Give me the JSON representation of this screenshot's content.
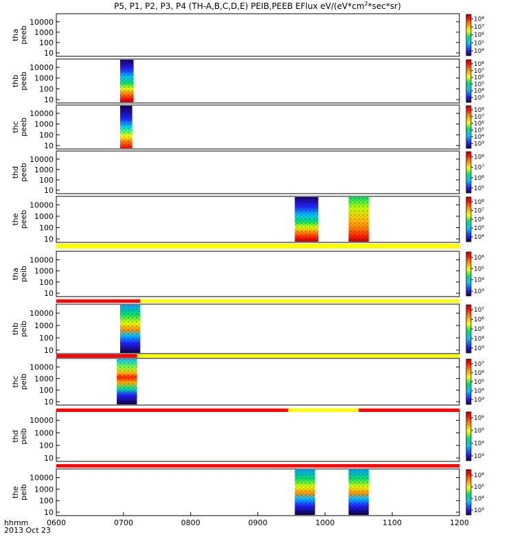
{
  "chart_data": {
    "type": "heatmap",
    "title": "P5, P1, P2, P3, P4 (TH-A,B,C,D,E) PEIB,PEEB EFlux eV/(eV*cm",
    "title_superscript": "2",
    "title_suffix": "*sec*sr)",
    "date_label": "2013 Oct 23",
    "time_axis_label": "hhmm",
    "x_ticks": [
      "0600",
      "0700",
      "0800",
      "0900",
      "1000",
      "1100",
      "1200"
    ],
    "x_range_hours": [
      6,
      12
    ],
    "y_ticks": [
      "10",
      "100",
      "1000",
      "10000"
    ],
    "y_scale": "log",
    "panels": [
      {
        "probe": "tha",
        "product": "peeb",
        "cbar_labels": [
          "10⁴",
          "10⁵",
          "10⁶",
          "10⁷",
          "10⁸"
        ],
        "blocks": []
      },
      {
        "probe": "thb",
        "product": "peeb",
        "cbar_labels": [
          "10³",
          "10⁴",
          "10⁵",
          "10⁶",
          "10⁷",
          "10⁸"
        ],
        "blocks": [
          {
            "start": 6.95,
            "end": 7.15,
            "kind": "electron"
          }
        ]
      },
      {
        "probe": "thc",
        "product": "peeb",
        "cbar_labels": [
          "10³",
          "10⁴",
          "10⁵",
          "10⁶",
          "10⁷",
          "10⁸"
        ],
        "blocks": [
          {
            "start": 6.95,
            "end": 7.13,
            "kind": "electron-high"
          }
        ]
      },
      {
        "probe": "thd",
        "product": "peeb",
        "cbar_labels": [
          "10⁵",
          "10⁶",
          "10⁷",
          "10⁸"
        ],
        "blocks": []
      },
      {
        "probe": "the",
        "product": "peeb",
        "cbar_labels": [
          "10⁴",
          "10⁵",
          "10⁶",
          "10⁷",
          "10⁸"
        ],
        "blocks": [
          {
            "start": 9.55,
            "end": 9.9,
            "kind": "electron"
          },
          {
            "start": 10.35,
            "end": 10.65,
            "kind": "electron-low"
          }
        ]
      },
      {
        "probe": "tha",
        "product": "peib",
        "cbar_labels": [
          "10³",
          "10⁴",
          "10⁵",
          "10⁶"
        ],
        "blocks": []
      },
      {
        "probe": "thb",
        "product": "peib",
        "cbar_labels": [
          "10³",
          "10⁴",
          "10⁵",
          "10⁶",
          "10⁷"
        ],
        "blocks": [
          {
            "start": 6.95,
            "end": 7.25,
            "kind": "ion"
          }
        ]
      },
      {
        "probe": "thc",
        "product": "peib",
        "cbar_labels": [
          "10³",
          "10⁴",
          "10⁵",
          "10⁶",
          "10⁷"
        ],
        "blocks": [
          {
            "start": 6.9,
            "end": 7.2,
            "kind": "ion-mid"
          }
        ]
      },
      {
        "probe": "thd",
        "product": "peib",
        "cbar_labels": [
          "10³",
          "10⁴",
          "10⁵",
          "10⁶"
        ],
        "blocks": []
      },
      {
        "probe": "the",
        "product": "peib",
        "cbar_labels": [
          "10³",
          "10⁴",
          "10⁵",
          "10⁶"
        ],
        "blocks": [
          {
            "start": 9.55,
            "end": 9.85,
            "kind": "ion"
          },
          {
            "start": 10.35,
            "end": 10.65,
            "kind": "ion"
          }
        ]
      }
    ],
    "mode_bars": [
      {
        "segments": [
          {
            "start": 6.0,
            "end": 12.0,
            "color": "#ffff00"
          }
        ]
      },
      {
        "segments": [
          {
            "start": 6.0,
            "end": 7.25,
            "color": "#ff0000"
          },
          {
            "start": 7.25,
            "end": 12.0,
            "color": "#ffff00"
          }
        ]
      },
      {
        "segments": [
          {
            "start": 6.0,
            "end": 7.2,
            "color": "#ff0000"
          },
          {
            "start": 7.2,
            "end": 12.0,
            "color": "#ffff00"
          }
        ]
      },
      {
        "segments": [
          {
            "start": 6.0,
            "end": 9.45,
            "color": "#ff0000"
          },
          {
            "start": 9.45,
            "end": 10.5,
            "color": "#ffff00"
          },
          {
            "start": 10.5,
            "end": 12.0,
            "color": "#ff0000"
          }
        ]
      },
      {
        "segments": [
          {
            "start": 6.0,
            "end": 12.0,
            "color": "#ff0000"
          }
        ]
      }
    ]
  }
}
